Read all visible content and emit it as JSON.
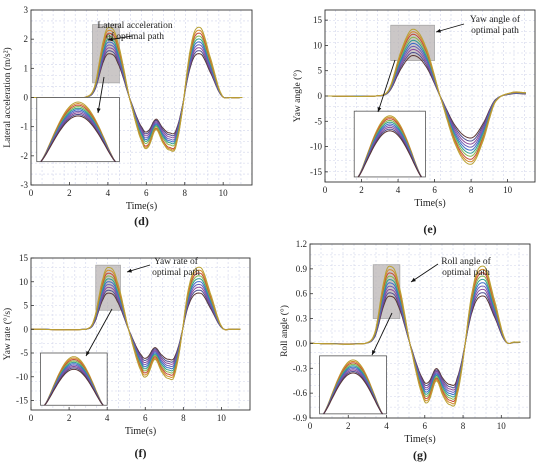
{
  "figure": {
    "panels": [
      {
        "id": "d",
        "caption": "(d)",
        "annotation": "Lateral acceleration\nof optimal path",
        "chart_data": {
          "type": "line",
          "title": "",
          "xlabel": "Time(s)",
          "ylabel": "Lateral acceleration  (m/s²)",
          "xlim": [
            0,
            11.5
          ],
          "ylim": [
            -3,
            3
          ],
          "xticks": [
            0,
            2,
            4,
            6,
            8,
            10
          ],
          "yticks": [
            -3,
            -2,
            -1,
            0,
            1,
            2,
            3
          ],
          "grid": true,
          "highlight": {
            "x": [
              3.2,
              4.6
            ],
            "y": [
              0.5,
              2.5
            ]
          },
          "inset": {
            "x": [
              0.3,
              4.6
            ],
            "y": [
              -2.2,
              0.0
            ]
          },
          "keypoints": {
            "x": [
              0,
              2.8,
              3.3,
              3.8,
              4.1,
              4.5,
              5.2,
              5.8,
              6.1,
              6.5,
              6.85,
              7.2,
              7.6,
              8.3,
              8.8,
              9.3,
              9.9,
              10.4,
              11
            ],
            "shape": [
              0,
              0,
              0.15,
              0.85,
              1,
              0.8,
              -0.1,
              -0.78,
              -0.85,
              -0.55,
              -0.77,
              -0.9,
              -0.75,
              0.7,
              1,
              0.6,
              0.05,
              0,
              0
            ]
          },
          "series": [
            {
              "color": "#b9a235",
              "peak": 2.4,
              "trough": -2.0
            },
            {
              "color": "#d48a2a",
              "peak": 2.3,
              "trough": -1.95
            },
            {
              "color": "#c24c3a",
              "peak": 2.2,
              "trough": -1.9
            },
            {
              "color": "#86b64a",
              "peak": 2.1,
              "trough": -1.8
            },
            {
              "color": "#2e9c8f",
              "peak": 2.0,
              "trough": -1.72
            },
            {
              "color": "#3c6bc7",
              "peak": 1.9,
              "trough": -1.65
            },
            {
              "color": "#6a5fb5",
              "peak": 1.8,
              "trough": -1.58
            },
            {
              "color": "#8a4a9a",
              "peak": 1.7,
              "trough": -1.5
            },
            {
              "color": "#4d4d8f",
              "peak": 1.6,
              "trough": -1.42
            },
            {
              "color": "#5a3535",
              "peak": 1.5,
              "trough": -1.35
            }
          ]
        }
      },
      {
        "id": "e",
        "caption": "(e)",
        "annotation": "Yaw angle of\noptimal path",
        "chart_data": {
          "type": "line",
          "title": "",
          "xlabel": "Time(s)",
          "ylabel": "Yaw angle  (°)",
          "xlim": [
            0,
            11.5
          ],
          "ylim": [
            -17,
            17
          ],
          "xticks": [
            0,
            2,
            4,
            6,
            8,
            10
          ],
          "yticks": [
            -15,
            -10,
            -5,
            0,
            5,
            10,
            15
          ],
          "grid": true,
          "highlight": {
            "x": [
              3.6,
              6.0
            ],
            "y": [
              7,
              14
            ]
          },
          "inset": {
            "x": [
              1.6,
              5.5
            ],
            "y": [
              -16,
              -3
            ]
          },
          "keypoints": {
            "x": [
              0,
              2.8,
              3.5,
              4.2,
              4.8,
              5.5,
              6.3,
              7.2,
              8.0,
              8.6,
              9.3,
              10.2,
              11
            ],
            "shape": [
              0,
              0,
              0.1,
              0.7,
              1,
              0.75,
              0,
              -0.75,
              -1,
              -0.7,
              -0.1,
              0.05,
              0.05
            ]
          },
          "series": [
            {
              "color": "#b9a235",
              "peak": 13.2,
              "trough": -13.5
            },
            {
              "color": "#d48a2a",
              "peak": 12.7,
              "trough": -13.0
            },
            {
              "color": "#c24c3a",
              "peak": 12.2,
              "trough": -12.5
            },
            {
              "color": "#86b64a",
              "peak": 11.6,
              "trough": -11.9
            },
            {
              "color": "#2e9c8f",
              "peak": 11.0,
              "trough": -11.3
            },
            {
              "color": "#3c6bc7",
              "peak": 10.4,
              "trough": -10.7
            },
            {
              "color": "#6a5fb5",
              "peak": 9.8,
              "trough": -10.1
            },
            {
              "color": "#8a4a9a",
              "peak": 9.2,
              "trough": -9.5
            },
            {
              "color": "#4d4d8f",
              "peak": 8.6,
              "trough": -8.9
            },
            {
              "color": "#5a3535",
              "peak": 8.0,
              "trough": -8.3
            }
          ]
        }
      },
      {
        "id": "f",
        "caption": "(f)",
        "annotation": "Yaw rate of\noptimal path",
        "chart_data": {
          "type": "line",
          "title": "",
          "xlabel": "Time(s)",
          "ylabel": "Yaw rate  (°/s)",
          "xlim": [
            0,
            11.5
          ],
          "ylim": [
            -17,
            15
          ],
          "xticks": [
            0,
            2,
            4,
            6,
            8,
            10
          ],
          "yticks": [
            -15,
            -10,
            -5,
            0,
            5,
            10,
            15
          ],
          "grid": true,
          "highlight": {
            "x": [
              3.4,
              4.7
            ],
            "y": [
              4,
              13.5
            ]
          },
          "inset": {
            "x": [
              0.5,
              4.0
            ],
            "y": [
              -16,
              -5
            ]
          },
          "keypoints": {
            "x": [
              0,
              2.9,
              3.3,
              3.8,
              4.1,
              4.5,
              5.2,
              5.8,
              6.1,
              6.5,
              6.85,
              7.2,
              7.6,
              8.3,
              8.9,
              9.4,
              10.0,
              10.5,
              11
            ],
            "shape": [
              0,
              0,
              0.15,
              0.85,
              1,
              0.8,
              -0.1,
              -0.78,
              -0.85,
              -0.55,
              -0.77,
              -0.9,
              -0.75,
              0.7,
              1,
              0.6,
              0.05,
              0,
              0
            ]
          },
          "series": [
            {
              "color": "#b9a235",
              "peak": 13.0,
              "trough": -11.5
            },
            {
              "color": "#d48a2a",
              "peak": 12.4,
              "trough": -11.0
            },
            {
              "color": "#c24c3a",
              "peak": 11.8,
              "trough": -10.5
            },
            {
              "color": "#86b64a",
              "peak": 11.2,
              "trough": -10.0
            },
            {
              "color": "#2e9c8f",
              "peak": 10.6,
              "trough": -9.5
            },
            {
              "color": "#3c6bc7",
              "peak": 10.0,
              "trough": -9.0
            },
            {
              "color": "#6a5fb5",
              "peak": 9.4,
              "trough": -8.5
            },
            {
              "color": "#8a4a9a",
              "peak": 8.8,
              "trough": -8.0
            },
            {
              "color": "#4d4d8f",
              "peak": 8.2,
              "trough": -7.5
            },
            {
              "color": "#5a3535",
              "peak": 7.6,
              "trough": -7.0
            }
          ]
        }
      },
      {
        "id": "g",
        "caption": "(g)",
        "annotation": "Roll angle of\noptimal path",
        "chart_data": {
          "type": "line",
          "title": "",
          "xlabel": "Time(s)",
          "ylabel": "Roll angle  (°)",
          "xlim": [
            0,
            11.5
          ],
          "ylim": [
            -0.9,
            1.2
          ],
          "xticks": [
            0,
            2,
            4,
            6,
            8,
            10
          ],
          "yticks": [
            -0.9,
            -0.6,
            -0.3,
            0.0,
            0.3,
            0.6,
            0.9,
            1.2
          ],
          "grid": true,
          "highlight": {
            "x": [
              3.3,
              4.7
            ],
            "y": [
              0.3,
              0.95
            ]
          },
          "inset": {
            "x": [
              0.5,
              4.0
            ],
            "y": [
              -0.85,
              -0.15
            ]
          },
          "keypoints": {
            "x": [
              0,
              2.9,
              3.4,
              3.9,
              4.2,
              4.6,
              5.3,
              5.9,
              6.2,
              6.6,
              6.95,
              7.3,
              7.7,
              8.5,
              9.1,
              9.6,
              10.2,
              10.7,
              11
            ],
            "shape": [
              0,
              0,
              0.15,
              0.85,
              1,
              0.8,
              -0.1,
              -0.78,
              -0.85,
              -0.55,
              -0.77,
              -0.9,
              -0.75,
              0.7,
              1,
              0.6,
              0.05,
              0.02,
              0.02
            ]
          },
          "series": [
            {
              "color": "#b9a235",
              "peak": 0.93,
              "trough": -0.82
            },
            {
              "color": "#d48a2a",
              "peak": 0.89,
              "trough": -0.79
            },
            {
              "color": "#c24c3a",
              "peak": 0.85,
              "trough": -0.76
            },
            {
              "color": "#86b64a",
              "peak": 0.81,
              "trough": -0.73
            },
            {
              "color": "#2e9c8f",
              "peak": 0.77,
              "trough": -0.7
            },
            {
              "color": "#3c6bc7",
              "peak": 0.73,
              "trough": -0.67
            },
            {
              "color": "#6a5fb5",
              "peak": 0.69,
              "trough": -0.64
            },
            {
              "color": "#8a4a9a",
              "peak": 0.65,
              "trough": -0.61
            },
            {
              "color": "#4d4d8f",
              "peak": 0.61,
              "trough": -0.58
            },
            {
              "color": "#5a3535",
              "peak": 0.57,
              "trough": -0.55
            }
          ]
        }
      }
    ]
  }
}
